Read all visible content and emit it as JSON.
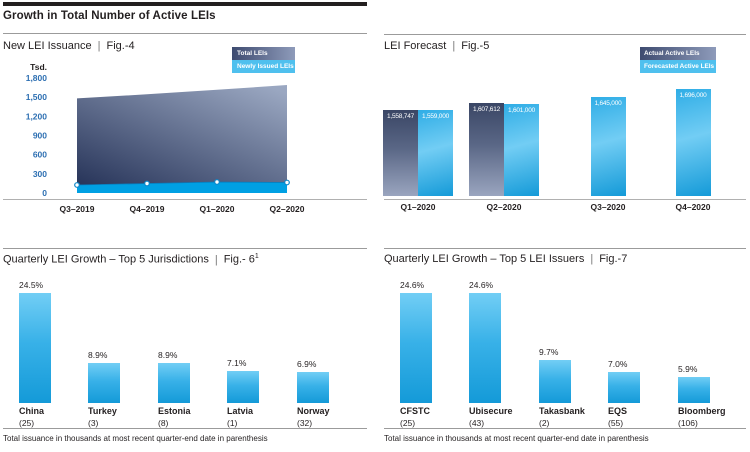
{
  "page": {
    "header": "Growth in Total Number of Active LEIs",
    "separator": "|",
    "footnote": "Total issuance in thousands at most recent quarter-end date in parenthesis"
  },
  "colors": {
    "accent_blue": "#00a0e3",
    "legend_light_blue": "#4fc0ee",
    "bar_blue_top": "#72cef5",
    "bar_blue_bottom": "#149ad8",
    "dark_navy": "#3a4665",
    "slate_light": "#9aa5bf",
    "tick_blue": "#2d6fb2",
    "text_dark": "#231f20",
    "rule_gray": "#9b9b9b"
  },
  "chart_data": [
    {
      "id": "fig-4",
      "type": "area",
      "title": "New LEI Issuance",
      "fig_label": "Fig.-4",
      "y_unit_label": "Tsd.",
      "x": [
        "Q3–2019",
        "Q4–2019",
        "Q1–2020",
        "Q2–2020"
      ],
      "ylim": [
        0,
        1800
      ],
      "ytick_step": 300,
      "yticks": [
        "1,800",
        "1,500",
        "1,200",
        "900",
        "600",
        "300",
        "0"
      ],
      "legend_position": "top-right",
      "grid": false,
      "series": [
        {
          "name": "Total LEIs",
          "style": "dark-gradient-area",
          "estimated": true,
          "values_thousands": [
            1480,
            1545,
            1615,
            1690
          ]
        },
        {
          "name": "Newly Issued LEIs",
          "style": "blue-band-with-markers",
          "estimated": true,
          "values_thousands": [
            30,
            45,
            60,
            55
          ]
        }
      ]
    },
    {
      "id": "fig-5",
      "type": "bar",
      "title": "LEI Forecast",
      "fig_label": "Fig.-5",
      "categories": [
        "Q1–2020",
        "Q2–2020",
        "Q3–2020",
        "Q4–2020"
      ],
      "legend_position": "top-right",
      "grid": false,
      "series": [
        {
          "name": "Actual Active LEIs",
          "style": "dark-gradient",
          "values": [
            1558747,
            1607612,
            null,
            null
          ],
          "labels": [
            "1,558,747",
            "1,607,612",
            null,
            null
          ]
        },
        {
          "name": "Forecasted Active LEIs",
          "style": "light-blue-gradient",
          "values": [
            1559000,
            1601000,
            1645000,
            1696000
          ],
          "labels": [
            "1,559,000",
            "1,601,000",
            "1,645,000",
            "1,696,000"
          ]
        }
      ]
    },
    {
      "id": "fig-6",
      "type": "bar",
      "title": "Quarterly LEI Growth – Top 5 Jurisdictions",
      "fig_label": "Fig.- 6",
      "footnote_marker": "1",
      "categories": [
        "China",
        "Turkey",
        "Estonia",
        "Latvia",
        "Norway"
      ],
      "issuance_labels": [
        "(25)",
        "(3)",
        "(8)",
        "(1)",
        "(32)"
      ],
      "values_pct": [
        24.5,
        8.9,
        8.9,
        7.1,
        6.9
      ],
      "labels": [
        "24.5%",
        "8.9%",
        "8.9%",
        "7.1%",
        "6.9%"
      ],
      "grid": false
    },
    {
      "id": "fig-7",
      "type": "bar",
      "title": "Quarterly LEI Growth – Top 5 LEI Issuers",
      "fig_label": "Fig.-7",
      "categories": [
        "CFSTC",
        "Ubisecure",
        "Takasbank",
        "EQS",
        "Bloomberg"
      ],
      "issuance_labels": [
        "(25)",
        "(43)",
        "(2)",
        "(55)",
        "(106)"
      ],
      "values_pct": [
        24.6,
        24.6,
        9.7,
        7.0,
        5.9
      ],
      "labels": [
        "24.6%",
        "24.6%",
        "9.7%",
        "7.0%",
        "5.9%"
      ],
      "grid": false
    }
  ]
}
